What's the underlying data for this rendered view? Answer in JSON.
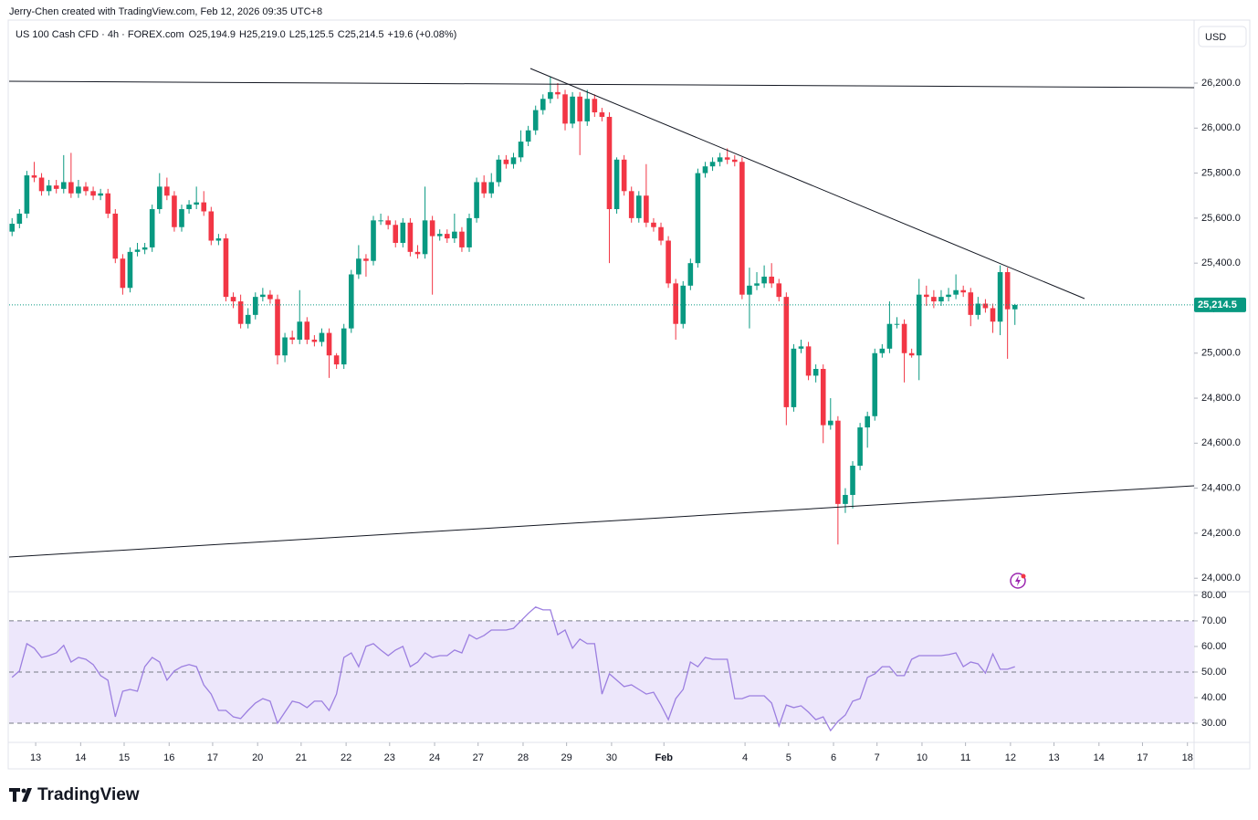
{
  "header": {
    "credit": "Jerry-Chen created with TradingView.com, Feb 12, 2026 09:35 UTC+8",
    "symbol": "US 100 Cash CFD · 4h · FOREX.com",
    "ohlc": [
      {
        "key": "O",
        "value": "25,194.9"
      },
      {
        "key": "H",
        "value": "25,219.0"
      },
      {
        "key": "L",
        "value": "25,125.5"
      },
      {
        "key": "C",
        "value": "25,214.5"
      }
    ],
    "change": "+19.6 (+0.08%)",
    "currency": "USD"
  },
  "footer": {
    "brand": "TradingView"
  },
  "chart_data": {
    "type": "candlestick",
    "up_color": "#089981",
    "down_color": "#f23645",
    "candles": [
      [
        25540,
        25600,
        25520,
        25575
      ],
      [
        25575,
        25640,
        25555,
        25620
      ],
      [
        25620,
        25810,
        25600,
        25790
      ],
      [
        25790,
        25850,
        25760,
        25780
      ],
      [
        25780,
        25800,
        25700,
        25720
      ],
      [
        25720,
        25770,
        25700,
        25745
      ],
      [
        25745,
        25770,
        25710,
        25730
      ],
      [
        25730,
        25880,
        25710,
        25760
      ],
      [
        25760,
        25890,
        25690,
        25710
      ],
      [
        25710,
        25770,
        25690,
        25740
      ],
      [
        25740,
        25760,
        25700,
        25720
      ],
      [
        25720,
        25740,
        25680,
        25700
      ],
      [
        25700,
        25730,
        25680,
        25710
      ],
      [
        25710,
        25730,
        25600,
        25620
      ],
      [
        25620,
        25640,
        25400,
        25420
      ],
      [
        25420,
        25440,
        25260,
        25290
      ],
      [
        25290,
        25470,
        25270,
        25450
      ],
      [
        25450,
        25490,
        25430,
        25460
      ],
      [
        25460,
        25490,
        25440,
        25470
      ],
      [
        25470,
        25660,
        25450,
        25640
      ],
      [
        25640,
        25800,
        25620,
        25740
      ],
      [
        25740,
        25780,
        25680,
        25700
      ],
      [
        25700,
        25720,
        25540,
        25560
      ],
      [
        25560,
        25660,
        25540,
        25640
      ],
      [
        25640,
        25680,
        25620,
        25660
      ],
      [
        25660,
        25740,
        25640,
        25670
      ],
      [
        25670,
        25720,
        25610,
        25630
      ],
      [
        25630,
        25650,
        25480,
        25500
      ],
      [
        25500,
        25530,
        25480,
        25510
      ],
      [
        25510,
        25530,
        25230,
        25250
      ],
      [
        25250,
        25270,
        25200,
        25230
      ],
      [
        25230,
        25260,
        25110,
        25130
      ],
      [
        25130,
        25200,
        25110,
        25170
      ],
      [
        25170,
        25270,
        25150,
        25250
      ],
      [
        25250,
        25290,
        25230,
        25260
      ],
      [
        25260,
        25280,
        25220,
        25240
      ],
      [
        25240,
        25260,
        24950,
        24990
      ],
      [
        24990,
        25090,
        24960,
        25070
      ],
      [
        25070,
        25100,
        25040,
        25060
      ],
      [
        25060,
        25280,
        25040,
        25140
      ],
      [
        25140,
        25160,
        25040,
        25060
      ],
      [
        25060,
        25080,
        25030,
        25050
      ],
      [
        25050,
        25110,
        25030,
        25090
      ],
      [
        25090,
        25110,
        24890,
        24990
      ],
      [
        24990,
        25000,
        24930,
        24950
      ],
      [
        24950,
        25130,
        24930,
        25110
      ],
      [
        25110,
        25370,
        25090,
        25350
      ],
      [
        25350,
        25480,
        25330,
        25420
      ],
      [
        25420,
        25440,
        25340,
        25410
      ],
      [
        25410,
        25610,
        25390,
        25590
      ],
      [
        25590,
        25620,
        25570,
        25590
      ],
      [
        25590,
        25610,
        25550,
        25570
      ],
      [
        25570,
        25590,
        25470,
        25490
      ],
      [
        25490,
        25600,
        25470,
        25580
      ],
      [
        25580,
        25600,
        25430,
        25450
      ],
      [
        25450,
        25480,
        25420,
        25440
      ],
      [
        25440,
        25740,
        25420,
        25590
      ],
      [
        25590,
        25610,
        25260,
        25520
      ],
      [
        25520,
        25550,
        25500,
        25530
      ],
      [
        25530,
        25550,
        25490,
        25510
      ],
      [
        25510,
        25620,
        25490,
        25540
      ],
      [
        25540,
        25560,
        25450,
        25470
      ],
      [
        25470,
        25620,
        25450,
        25600
      ],
      [
        25600,
        25780,
        25580,
        25760
      ],
      [
        25760,
        25790,
        25690,
        25710
      ],
      [
        25710,
        25800,
        25690,
        25760
      ],
      [
        25760,
        25880,
        25740,
        25860
      ],
      [
        25860,
        25880,
        25820,
        25840
      ],
      [
        25840,
        25890,
        25820,
        25870
      ],
      [
        25870,
        25990,
        25850,
        25940
      ],
      [
        25940,
        26010,
        25920,
        25990
      ],
      [
        25990,
        26100,
        25970,
        26080
      ],
      [
        26080,
        26150,
        26060,
        26130
      ],
      [
        26130,
        26230,
        26110,
        26160
      ],
      [
        26160,
        26200,
        26130,
        26150
      ],
      [
        26150,
        26170,
        25990,
        26020
      ],
      [
        26020,
        26160,
        26000,
        26140
      ],
      [
        26140,
        26160,
        25880,
        26030
      ],
      [
        26030,
        26170,
        26010,
        26130
      ],
      [
        26130,
        26150,
        26050,
        26070
      ],
      [
        26070,
        26090,
        26030,
        26050
      ],
      [
        26050,
        26070,
        25400,
        25640
      ],
      [
        25640,
        25870,
        25620,
        25860
      ],
      [
        25860,
        25880,
        25700,
        25720
      ],
      [
        25720,
        25740,
        25580,
        25600
      ],
      [
        25600,
        25720,
        25580,
        25700
      ],
      [
        25700,
        25840,
        25560,
        25580
      ],
      [
        25580,
        25600,
        25540,
        25560
      ],
      [
        25560,
        25580,
        25480,
        25500
      ],
      [
        25500,
        25520,
        25290,
        25310
      ],
      [
        25310,
        25330,
        25060,
        25130
      ],
      [
        25130,
        25320,
        25110,
        25300
      ],
      [
        25300,
        25420,
        25280,
        25400
      ],
      [
        25400,
        25820,
        25380,
        25800
      ],
      [
        25800,
        25850,
        25780,
        25830
      ],
      [
        25830,
        25870,
        25810,
        25850
      ],
      [
        25850,
        25890,
        25830,
        25870
      ],
      [
        25870,
        25910,
        25840,
        25860
      ],
      [
        25860,
        25880,
        25830,
        25850
      ],
      [
        25850,
        25870,
        25240,
        25260
      ],
      [
        25260,
        25380,
        25110,
        25300
      ],
      [
        25300,
        25360,
        25280,
        25310
      ],
      [
        25310,
        25390,
        25290,
        25340
      ],
      [
        25340,
        25400,
        25290,
        25310
      ],
      [
        25310,
        25330,
        25230,
        25250
      ],
      [
        25250,
        25270,
        24680,
        24760
      ],
      [
        24760,
        25040,
        24740,
        25020
      ],
      [
        25020,
        25060,
        25000,
        25030
      ],
      [
        25030,
        25050,
        24880,
        24900
      ],
      [
        24900,
        24950,
        24870,
        24930
      ],
      [
        24930,
        24950,
        24600,
        24680
      ],
      [
        24680,
        24800,
        24660,
        24700
      ],
      [
        24700,
        24720,
        24150,
        24330
      ],
      [
        24330,
        24400,
        24290,
        24370
      ],
      [
        24370,
        24520,
        24310,
        24500
      ],
      [
        24500,
        24690,
        24480,
        24670
      ],
      [
        24670,
        24740,
        24580,
        24720
      ],
      [
        24720,
        25020,
        24700,
        25000
      ],
      [
        25000,
        25040,
        24980,
        25020
      ],
      [
        25020,
        25230,
        25000,
        25130
      ],
      [
        25130,
        25160,
        25110,
        25130
      ],
      [
        25130,
        25150,
        24870,
        25000
      ],
      [
        25000,
        25020,
        24980,
        24990
      ],
      [
        24990,
        25330,
        24880,
        25260
      ],
      [
        25260,
        25300,
        25210,
        25250
      ],
      [
        25250,
        25280,
        25200,
        25230
      ],
      [
        25230,
        25280,
        25210,
        25250
      ],
      [
        25250,
        25290,
        25230,
        25260
      ],
      [
        25260,
        25350,
        25240,
        25280
      ],
      [
        25280,
        25300,
        25250,
        25270
      ],
      [
        25270,
        25290,
        25120,
        25170
      ],
      [
        25170,
        25250,
        25150,
        25220
      ],
      [
        25220,
        25240,
        25180,
        25200
      ],
      [
        25200,
        25220,
        25090,
        25140
      ],
      [
        25140,
        25390,
        25080,
        25360
      ],
      [
        25360,
        25380,
        24975,
        25195
      ],
      [
        25194.9,
        25219,
        25125.5,
        25214.5
      ]
    ],
    "ylim": [
      23940,
      26480
    ],
    "yticks": [
      {
        "value": 24000,
        "label": "24,000.0"
      },
      {
        "value": 24200,
        "label": "24,200.0"
      },
      {
        "value": 24400,
        "label": "24,400.0"
      },
      {
        "value": 24600,
        "label": "24,600.0"
      },
      {
        "value": 24800,
        "label": "24,800.0"
      },
      {
        "value": 25000,
        "label": "25,000.0"
      },
      {
        "value": 25200,
        "label": "25,200.0"
      },
      {
        "value": 25400,
        "label": "25,400.0"
      },
      {
        "value": 25600,
        "label": "25,600.0"
      },
      {
        "value": 25800,
        "label": "25,800.0"
      },
      {
        "value": 26000,
        "label": "26,000.0"
      },
      {
        "value": 26200,
        "label": "26,200.0"
      }
    ],
    "last_price": {
      "value": 25214.5,
      "label": "25,214.5"
    },
    "xlim": [
      -0.4,
      160.3
    ],
    "xticks": [
      {
        "value": 3.2,
        "label": "13"
      },
      {
        "value": 9.3,
        "label": "14"
      },
      {
        "value": 15.2,
        "label": "15"
      },
      {
        "value": 21.3,
        "label": "16"
      },
      {
        "value": 27.2,
        "label": "17"
      },
      {
        "value": 33.3,
        "label": "20"
      },
      {
        "value": 39.2,
        "label": "21"
      },
      {
        "value": 45.3,
        "label": "22"
      },
      {
        "value": 51.2,
        "label": "23"
      },
      {
        "value": 57.3,
        "label": "24"
      },
      {
        "value": 63.2,
        "label": "27"
      },
      {
        "value": 69.3,
        "label": "28"
      },
      {
        "value": 75.2,
        "label": "29"
      },
      {
        "value": 81.3,
        "label": "30"
      },
      {
        "value": 88.4,
        "label": "Feb"
      },
      {
        "value": 99.4,
        "label": "4"
      },
      {
        "value": 105.3,
        "label": "5"
      },
      {
        "value": 111.4,
        "label": "6"
      },
      {
        "value": 117.3,
        "label": "7"
      },
      {
        "value": 123.4,
        "label": "10"
      },
      {
        "value": 129.3,
        "label": "11"
      },
      {
        "value": 135.4,
        "label": "12"
      },
      {
        "value": 141.3,
        "label": "13"
      },
      {
        "value": 147.4,
        "label": "14"
      },
      {
        "value": 153.3,
        "label": "17"
      },
      {
        "value": 159.4,
        "label": "18"
      }
    ],
    "rsi": {
      "color": "#9c7fe0",
      "band_color": "#ede7fb",
      "values": [
        47.9,
        50.4,
        61.1,
        59.3,
        55.7,
        56.4,
        57.5,
        60.4,
        53.9,
        55.7,
        55.0,
        52.9,
        48.6,
        46.8,
        32.5,
        42.5,
        43.2,
        42.5,
        52.1,
        55.7,
        53.9,
        46.8,
        50.4,
        52.1,
        52.9,
        52.1,
        45.0,
        41.4,
        35.0,
        35.0,
        32.5,
        31.8,
        35.0,
        37.9,
        39.6,
        38.6,
        30.0,
        34.3,
        38.6,
        37.9,
        36.1,
        38.6,
        38.6,
        35.0,
        41.4,
        55.7,
        57.5,
        52.1,
        60.0,
        61.1,
        58.6,
        56.4,
        58.6,
        60.0,
        52.1,
        53.9,
        57.5,
        55.7,
        56.4,
        56.4,
        58.6,
        57.5,
        64.6,
        62.9,
        64.3,
        66.4,
        66.4,
        66.4,
        67.1,
        70.0,
        72.9,
        75.4,
        74.3,
        74.3,
        64.6,
        66.4,
        59.3,
        62.9,
        61.1,
        61.1,
        41.4,
        49.3,
        46.8,
        44.3,
        45.0,
        43.2,
        41.4,
        42.1,
        37.1,
        31.4,
        39.6,
        43.2,
        53.9,
        52.1,
        55.7,
        55.0,
        55.0,
        55.0,
        39.6,
        39.6,
        40.7,
        40.7,
        40.7,
        37.9,
        28.9,
        37.1,
        36.1,
        36.8,
        34.3,
        31.4,
        32.5,
        27.1,
        30.7,
        33.2,
        38.6,
        39.6,
        47.9,
        49.3,
        52.1,
        52.1,
        48.6,
        48.6,
        55.0,
        56.4,
        56.4,
        56.4,
        56.4,
        56.8,
        57.5,
        52.1,
        53.9,
        53.2,
        49.6,
        57.1,
        51.1,
        51.1,
        52.1
      ],
      "ylim": [
        22.5,
        81.4
      ],
      "yticks": [
        {
          "value": 30,
          "label": "30.00"
        },
        {
          "value": 40,
          "label": "40.00"
        },
        {
          "value": 50,
          "label": "50.00"
        },
        {
          "value": 60,
          "label": "60.00"
        },
        {
          "value": 70,
          "label": "70.00"
        },
        {
          "value": 80,
          "label": "80.00"
        }
      ],
      "levels": [
        30,
        50,
        70
      ],
      "band": [
        30,
        70
      ]
    }
  }
}
